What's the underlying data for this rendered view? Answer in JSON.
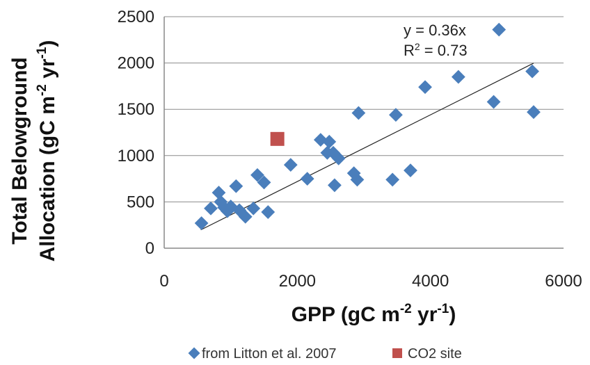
{
  "chart_data": {
    "type": "scatter",
    "xlabel": {
      "main": "GPP (gC m",
      "sup1": "-2",
      "mid": " yr",
      "sup2": "-1",
      "end": ")"
    },
    "ylabel": {
      "line1": "Total Belowground",
      "line2": {
        "main": "Allocation (gC m",
        "sup1": "-2",
        "mid": " yr",
        "sup2": "-1",
        "end": ")"
      }
    },
    "xlim": [
      0,
      6000
    ],
    "ylim": [
      0,
      2500
    ],
    "x_ticks": [
      "0",
      "2000",
      "4000",
      "6000"
    ],
    "y_ticks": [
      "0",
      "500",
      "1000",
      "1500",
      "2000",
      "2500"
    ],
    "grid": "horizontal",
    "legend_position": "bottom",
    "trendline": {
      "slope": 0.36,
      "x_range": [
        550,
        5550
      ],
      "equation": "y = 0.36x",
      "r2": {
        "prefix": "R",
        "sup": "2",
        "value": " = 0.73"
      }
    },
    "series": [
      {
        "name": "from Litton et al. 2007",
        "marker": "diamond",
        "color": "#4a7ebb",
        "points": [
          [
            560,
            270
          ],
          [
            700,
            430
          ],
          [
            820,
            600
          ],
          [
            850,
            500
          ],
          [
            900,
            440
          ],
          [
            950,
            400
          ],
          [
            1000,
            450
          ],
          [
            1080,
            670
          ],
          [
            1130,
            410
          ],
          [
            1220,
            340
          ],
          [
            1340,
            430
          ],
          [
            1400,
            790
          ],
          [
            1500,
            710
          ],
          [
            1560,
            390
          ],
          [
            1900,
            900
          ],
          [
            2150,
            750
          ],
          [
            2350,
            1170
          ],
          [
            2450,
            1030
          ],
          [
            2480,
            1150
          ],
          [
            2540,
            1030
          ],
          [
            2560,
            680
          ],
          [
            2620,
            970
          ],
          [
            2850,
            810
          ],
          [
            2900,
            740
          ],
          [
            2920,
            1460
          ],
          [
            3430,
            740
          ],
          [
            3480,
            1440
          ],
          [
            3700,
            840
          ],
          [
            3920,
            1740
          ],
          [
            4420,
            1850
          ],
          [
            4950,
            1580
          ],
          [
            5030,
            2360
          ],
          [
            5530,
            1910
          ],
          [
            5550,
            1470
          ]
        ]
      },
      {
        "name": "CO2 site",
        "marker": "square",
        "color": "#c0504d",
        "points": [
          [
            1700,
            1180
          ]
        ]
      }
    ]
  }
}
